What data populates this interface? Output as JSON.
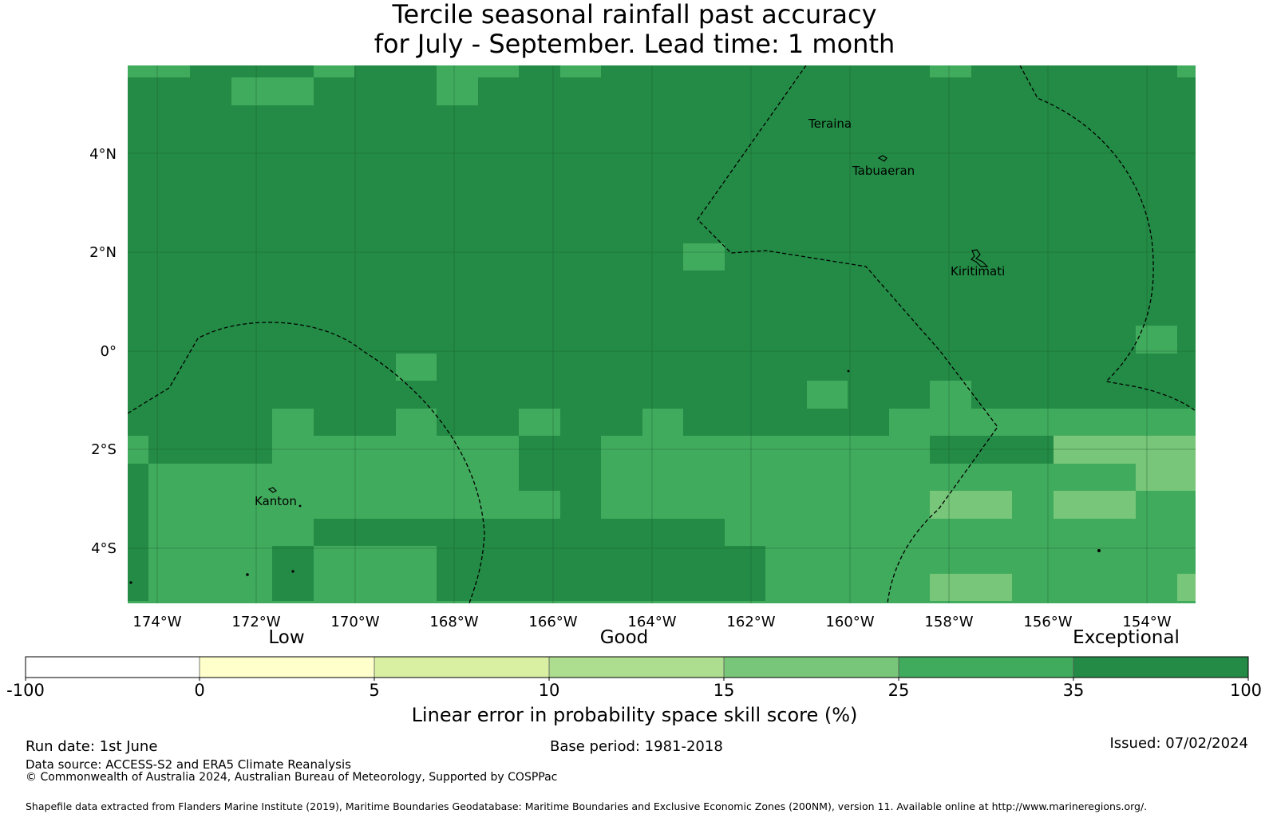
{
  "title": {
    "line1": "Tercile seasonal rainfall past accuracy",
    "line2": "for July - September. Lead time: 1 month"
  },
  "map": {
    "lon_ticks": [
      "174°W",
      "172°W",
      "170°W",
      "168°W",
      "166°W",
      "164°W",
      "162°W",
      "160°W",
      "158°W",
      "156°W",
      "154°W"
    ],
    "lat_ticks": [
      "4°N",
      "2°N",
      "0°",
      "2°S",
      "4°S"
    ],
    "place_labels": [
      "Teraina",
      "Tabuaeran",
      "Kiritimati",
      "Kanton"
    ],
    "gridlines": true,
    "colors": {
      "skill_35_100": "#238b45",
      "skill_25_35": "#41ab5d",
      "skill_15_25": "#78c679",
      "boundary": "#000000"
    }
  },
  "colorbar": {
    "headers": [
      "Low",
      "Good",
      "Exceptional"
    ],
    "ticks": [
      "-100",
      "0",
      "5",
      "10",
      "15",
      "25",
      "35",
      "100"
    ],
    "colors": [
      "#ffffff",
      "#ffffcc",
      "#d9f0a3",
      "#addd8e",
      "#78c679",
      "#41ab5d",
      "#238b45"
    ],
    "label": "Linear error in probability space skill score (%)"
  },
  "footer": {
    "run_date": "Run date: 1st June",
    "base_period": "Base period: 1981-2018",
    "issued": "Issued: 07/02/2024",
    "data_source": "Data source: ACCESS-S2 and ERA5 Climate Reanalysis",
    "copyright": "© Commonwealth of Australia 2024, Australian Bureau of Meteorology, Supported by COSPPac",
    "shapefile": "Shapefile data extracted from Flanders Marine Institute (2019), Maritime Boundaries Geodatabase: Maritime Boundaries and Exclusive Economic Zones (200NM), version 11. Available online at http://www.marineregions.org/."
  }
}
